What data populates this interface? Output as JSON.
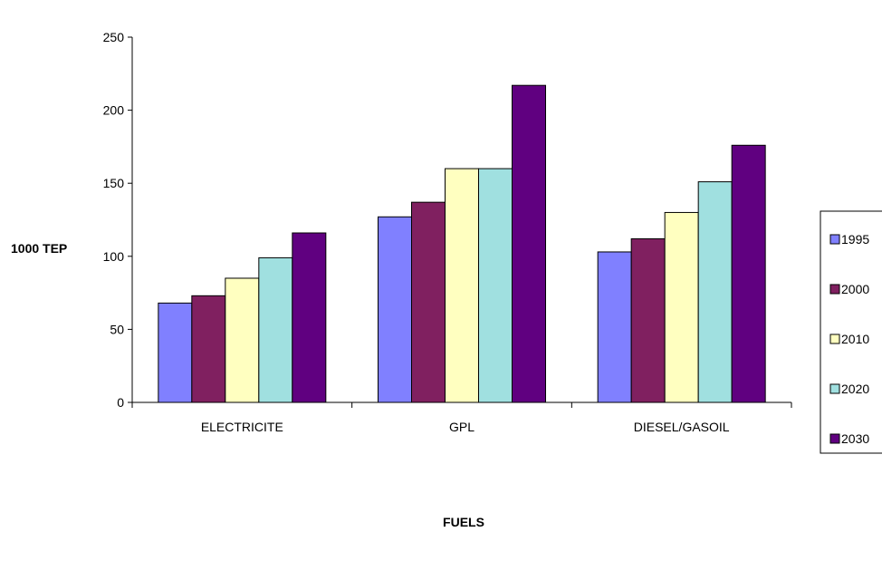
{
  "chart_data": {
    "type": "bar",
    "title": "",
    "xlabel": "FUELS",
    "ylabel": "1000 TEP",
    "categories": [
      "ELECTRICITE",
      "GPL",
      "DIESEL/GASOIL"
    ],
    "ylim": [
      0,
      250
    ],
    "yticks": [
      0,
      50,
      100,
      150,
      200,
      250
    ],
    "grid": false,
    "legend_position": "right",
    "series": [
      {
        "name": "1995",
        "color": "#8080ff",
        "values": [
          68,
          127,
          103
        ]
      },
      {
        "name": "2000",
        "color": "#802060",
        "values": [
          73,
          137,
          112
        ]
      },
      {
        "name": "2010",
        "color": "#ffffc0",
        "values": [
          85,
          160,
          130
        ]
      },
      {
        "name": "2020",
        "color": "#a0e0e0",
        "values": [
          99,
          160,
          151
        ]
      },
      {
        "name": "2030",
        "color": "#600080",
        "values": [
          116,
          217,
          176
        ]
      }
    ]
  }
}
